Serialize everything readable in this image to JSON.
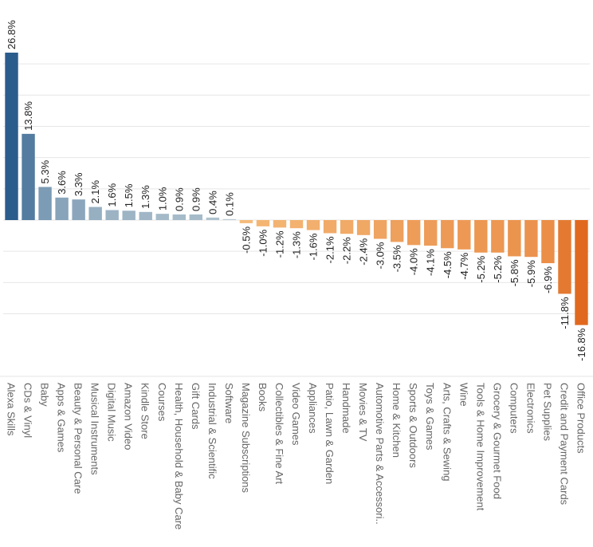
{
  "chart_data": {
    "type": "bar",
    "title": "",
    "xlabel": "",
    "ylabel": "",
    "ylim": [
      -20,
      30
    ],
    "grid": true,
    "value_suffix": "%",
    "categories": [
      "Alexa Skills",
      "CDs & Vinyl",
      "Baby",
      "Apps & Games",
      "Beauty & Personal Care",
      "Musical Instruments",
      "Digital Music",
      "Amazon Video",
      "Kindle Store",
      "Courses",
      "Health, Household & Baby Care",
      "Gift Cards",
      "Industrial & Scientific",
      "Software",
      "Magazine Subscriptions",
      "Books",
      "Collectibles & Fine Art",
      "Video Games",
      "Appliances",
      "Patio, Lawn & Garden",
      "Handmade",
      "Movies & TV",
      "Automotive Parts & Accessori..",
      "Home & Kitchen",
      "Sports & Outdoors",
      "Toys & Games",
      "Arts, Crafts & Sewing",
      "Wine",
      "Tools & Home Improvement",
      "Grocery & Gourmet Food",
      "Computers",
      "Electronics",
      "Pet Supplies",
      "Credit and Payment Cards",
      "Office Products"
    ],
    "values": [
      26.8,
      13.8,
      5.3,
      3.6,
      3.3,
      2.1,
      1.6,
      1.5,
      1.3,
      1.0,
      0.9,
      0.9,
      0.4,
      0.1,
      -0.5,
      -1.0,
      -1.2,
      -1.3,
      -1.6,
      -2.1,
      -2.2,
      -2.4,
      -3.0,
      -3.5,
      -4.0,
      -4.1,
      -4.5,
      -4.7,
      -5.2,
      -5.2,
      -5.8,
      -5.9,
      -6.9,
      -11.8,
      -16.8
    ],
    "labels": [
      "26.8%",
      "13.8%",
      "5.3%",
      "3.6%",
      "3.3%",
      "2.1%",
      "1.6%",
      "1.5%",
      "1.3%",
      "1.0%",
      "0.9%",
      "0.9%",
      "0.4%",
      "0.1%",
      "-0.5%",
      "-1.0%",
      "-1.2%",
      "-1.3%",
      "-1.6%",
      "-2.1%",
      "-2.2%",
      "-2.4%",
      "-3.0%",
      "-3.5%",
      "-4.0%",
      "-4.1%",
      "-4.5%",
      "-4.7%",
      "-5.2%",
      "-5.2%",
      "-5.8%",
      "-5.9%",
      "-6.9%",
      "-11.8%",
      "-16.8%"
    ],
    "colors": {
      "positive_max": "#2b5d8c",
      "positive_min": "#c8d5da",
      "negative_min": "#f9c98a",
      "negative_max": "#e0691f",
      "gridline": "#e6e6e6",
      "label_text": "#222222",
      "category_text": "#666666"
    }
  }
}
